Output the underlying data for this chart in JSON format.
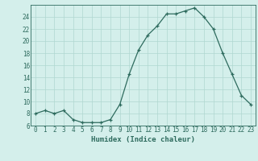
{
  "x": [
    0,
    1,
    2,
    3,
    4,
    5,
    6,
    7,
    8,
    9,
    10,
    11,
    12,
    13,
    14,
    15,
    16,
    17,
    18,
    19,
    20,
    21,
    22,
    23
  ],
  "y": [
    8.0,
    8.5,
    8.0,
    8.5,
    7.0,
    6.5,
    6.5,
    6.5,
    7.0,
    9.5,
    14.5,
    18.5,
    21.0,
    22.5,
    24.5,
    24.5,
    25.0,
    25.5,
    24.0,
    22.0,
    18.0,
    14.5,
    11.0,
    9.5
  ],
  "xlabel": "Humidex (Indice chaleur)",
  "ylim": [
    6,
    26
  ],
  "xlim": [
    -0.5,
    23.5
  ],
  "yticks": [
    6,
    8,
    10,
    12,
    14,
    16,
    18,
    20,
    22,
    24
  ],
  "xticks": [
    0,
    1,
    2,
    3,
    4,
    5,
    6,
    7,
    8,
    9,
    10,
    11,
    12,
    13,
    14,
    15,
    16,
    17,
    18,
    19,
    20,
    21,
    22,
    23
  ],
  "line_color": "#2e6b5e",
  "marker": "+",
  "bg_color": "#d4efeb",
  "grid_color": "#b0d8d0",
  "axis_color": "#2e6b5e",
  "label_fontsize": 6.5,
  "tick_fontsize": 5.5
}
